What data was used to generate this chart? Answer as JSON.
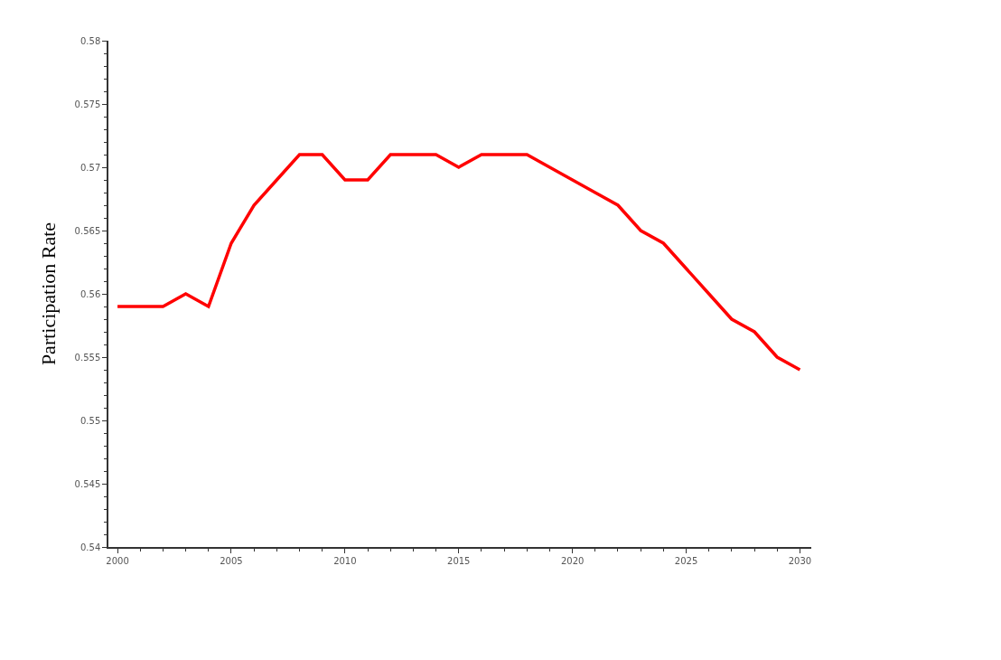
{
  "chart_data": {
    "type": "line",
    "ylabel": "Participation Rate",
    "x": [
      2000,
      2001,
      2002,
      2003,
      2004,
      2005,
      2006,
      2007,
      2008,
      2009,
      2010,
      2011,
      2012,
      2013,
      2014,
      2015,
      2016,
      2017,
      2018,
      2019,
      2020,
      2021,
      2022,
      2023,
      2024,
      2025,
      2026,
      2027,
      2028,
      2029,
      2030
    ],
    "series": [
      {
        "color": "#ff0000",
        "values": [
          0.559,
          0.559,
          0.559,
          0.56,
          0.559,
          0.564,
          0.567,
          0.569,
          0.571,
          0.571,
          0.569,
          0.569,
          0.571,
          0.571,
          0.571,
          0.57,
          0.571,
          0.571,
          0.571,
          0.57,
          0.569,
          0.568,
          0.567,
          0.565,
          0.564,
          0.562,
          0.56,
          0.558,
          0.557,
          0.555,
          0.554
        ]
      }
    ],
    "xlim": [
      1999.6,
      2030.5
    ],
    "xticks": [
      2000,
      2005,
      2010,
      2015,
      2020,
      2025,
      2030
    ],
    "ylim": [
      0.54,
      0.58
    ],
    "yticks": [
      0.54,
      0.545,
      0.55,
      0.555,
      0.56,
      0.565,
      0.57,
      0.575,
      0.58
    ],
    "marker": "none",
    "line_style": "solid"
  }
}
